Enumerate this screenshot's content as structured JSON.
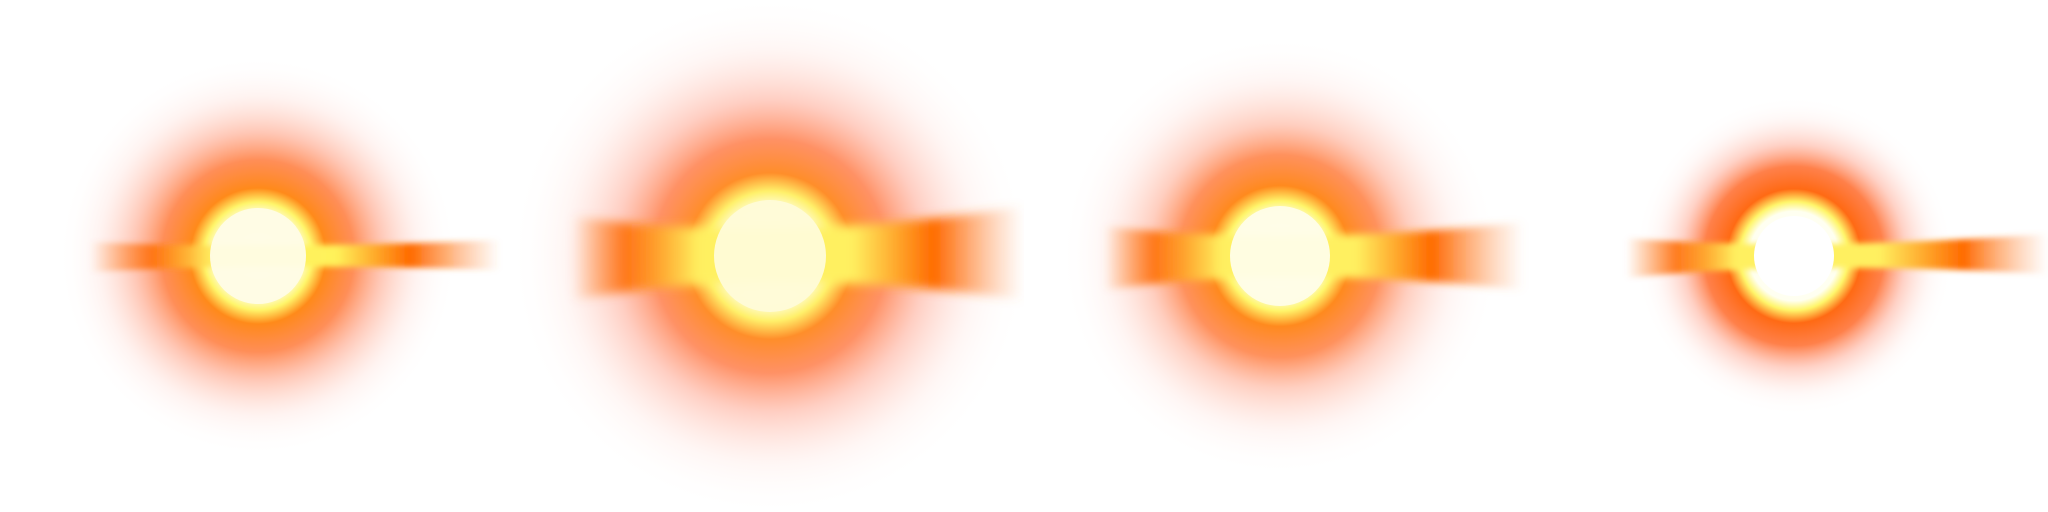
{
  "sprite_sheet": {
    "background": "#ffffff",
    "frames": [
      {
        "id": "flare-1",
        "glow_colors": [
          "#fffbe0",
          "#fff36a",
          "#ff7a12",
          "#ff8f6a",
          "#ffe6e2"
        ],
        "streak_color": "#ff6a00",
        "streak_core": "#ffffa0"
      },
      {
        "id": "flare-2",
        "glow_colors": [
          "#fffbe0",
          "#fff36a",
          "#ff7a12",
          "#ff8f6a",
          "#ffe6e2"
        ],
        "streak_color": "#ff6a00",
        "streak_core": "#ffffa0"
      },
      {
        "id": "flare-3",
        "glow_colors": [
          "#fffbe0",
          "#fff36a",
          "#ff7a12",
          "#ff8f6a",
          "#ffe6e2"
        ],
        "streak_color": "#ff6a00",
        "streak_core": "#ffffa0"
      },
      {
        "id": "flare-4",
        "glow_colors": [
          "#ffffff",
          "#fff36a",
          "#ff6a12",
          "#ff8f6a",
          "#ffe6e2"
        ],
        "streak_color": "#ff6a00",
        "streak_core": "#ffffd0"
      }
    ]
  }
}
